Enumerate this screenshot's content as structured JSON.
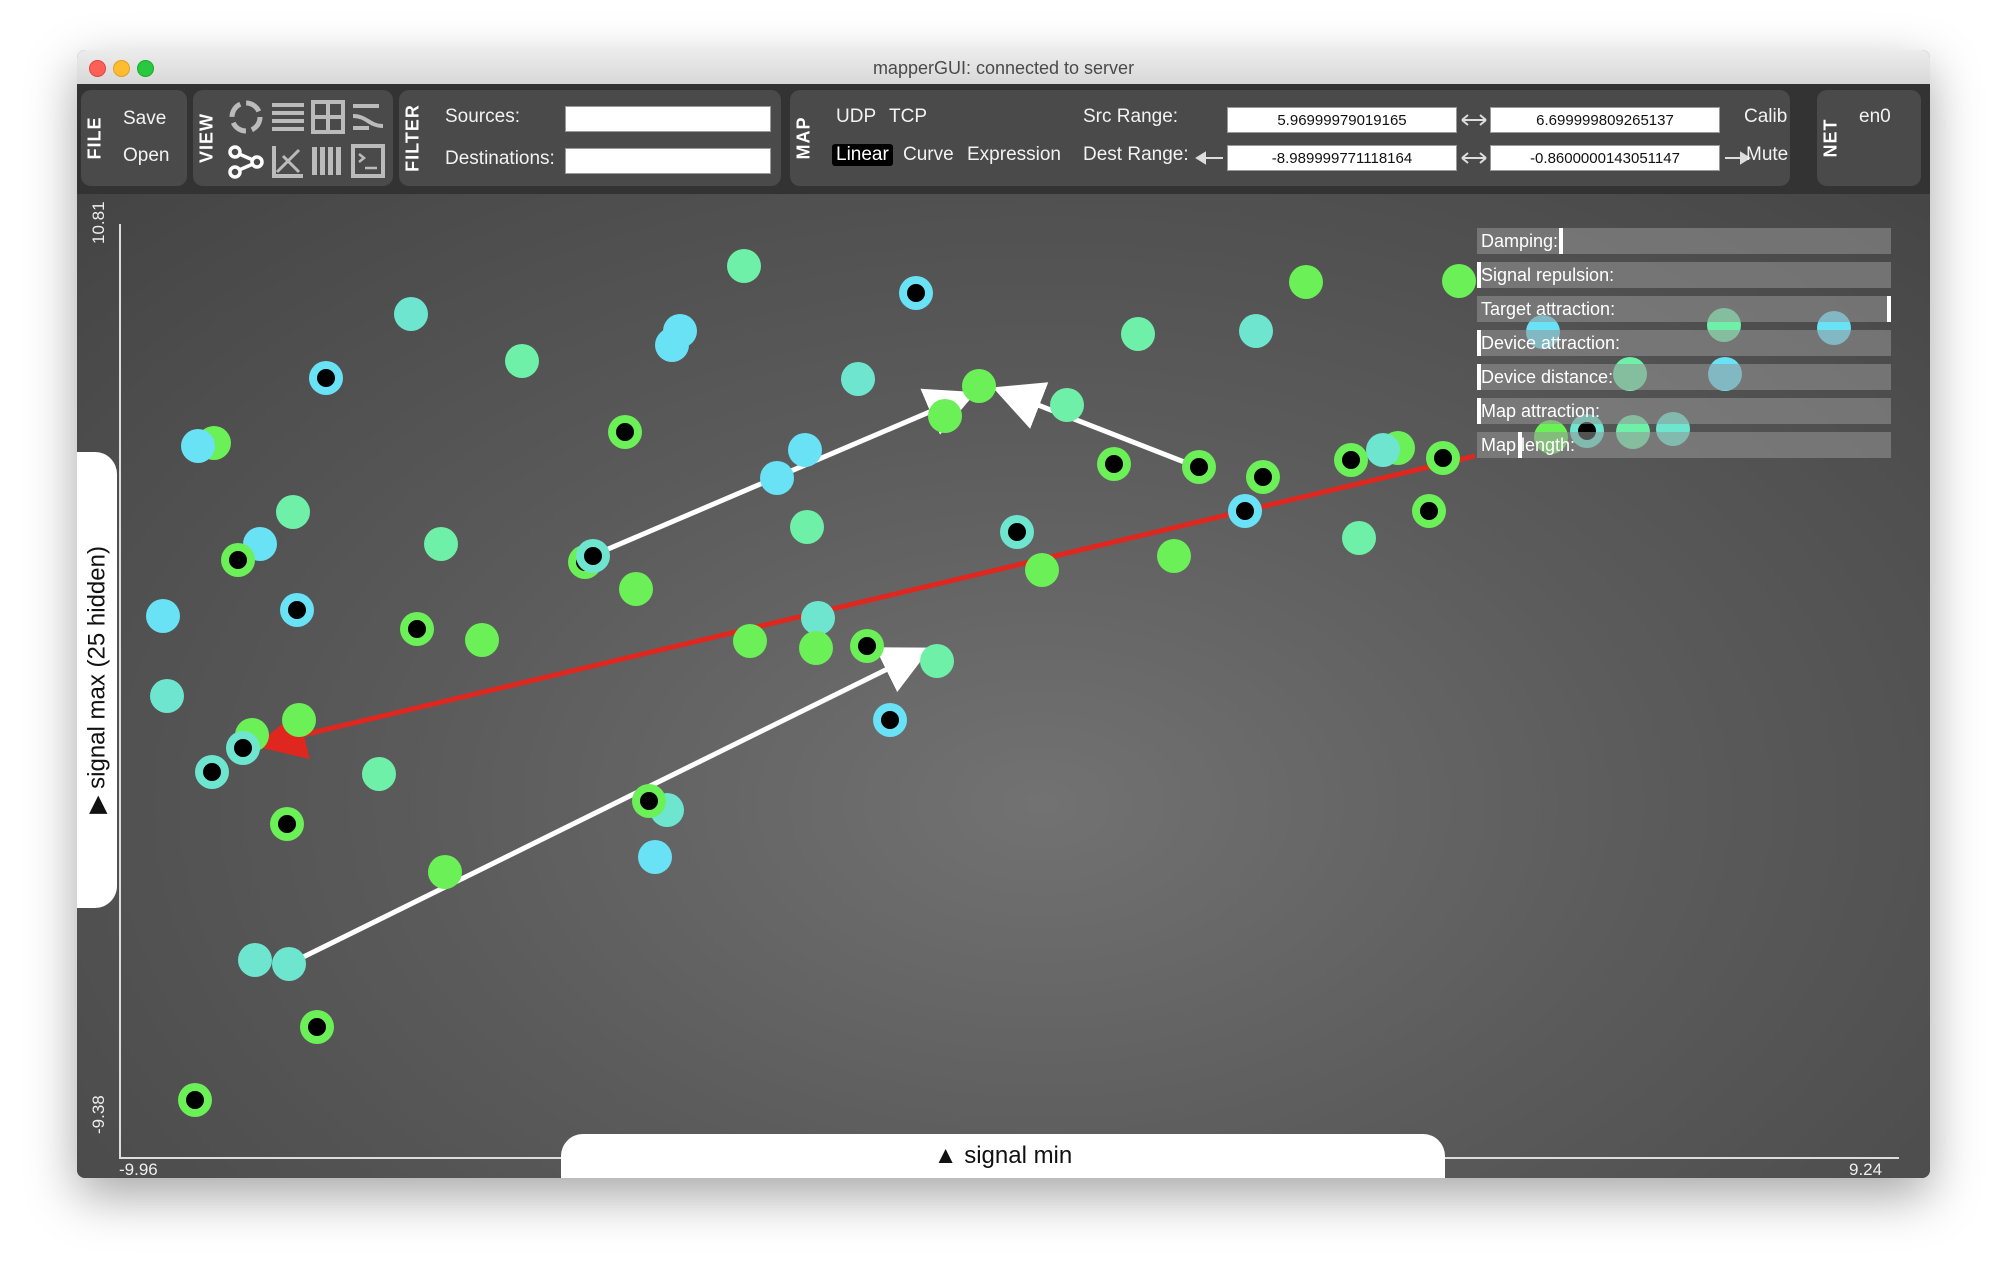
{
  "window": {
    "title": "mapperGUI: connected to server"
  },
  "file": {
    "label": "FILE",
    "save": "Save",
    "open": "Open"
  },
  "view": {
    "label": "VIEW"
  },
  "filter": {
    "label": "FILTER",
    "sources_label": "Sources:",
    "sources_value": "",
    "destinations_label": "Destinations:",
    "destinations_value": ""
  },
  "map": {
    "label": "MAP",
    "udp": "UDP",
    "tcp": "TCP",
    "linear": "Linear",
    "curve": "Curve",
    "expression": "Expression",
    "src_range_label": "Src Range:",
    "src_min": "5.96999979019165",
    "src_max": "6.699999809265137",
    "dest_range_label": "Dest Range:",
    "dest_min": "-8.989999771118164",
    "dest_max": "-0.8600000143051147",
    "calib": "Calib",
    "mute": "Mute"
  },
  "net": {
    "label": "NET",
    "interface": "en0"
  },
  "plot": {
    "y_axis_label": "▶ signal max (25 hidden)",
    "x_axis_label": "▲ signal min",
    "y_max": "10.81",
    "y_min": "-9.38",
    "x_min": "-9.96",
    "x_max": "9.24"
  },
  "sliders": [
    {
      "label": "Damping:",
      "value": 0.2
    },
    {
      "label": "Signal repulsion:",
      "value": 0.0
    },
    {
      "label": "Target attraction:",
      "value": 1.0
    },
    {
      "label": "Device attraction:",
      "value": 0.0
    },
    {
      "label": "Device distance:",
      "value": 0.0
    },
    {
      "label": "Map attraction:",
      "value": 0.0
    },
    {
      "label": "Map length:",
      "value": 0.1
    }
  ],
  "colors": {
    "green": "#6bf057",
    "mint": "#6ff0a8",
    "aqua": "#6ee6cf",
    "cyan": "#69e2f5",
    "selected_map": "#e0271f",
    "map": "#ffffff"
  }
}
